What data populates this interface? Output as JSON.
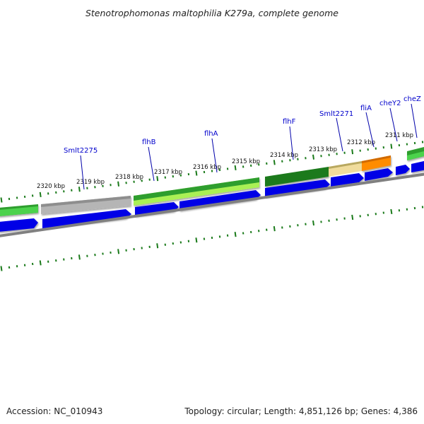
{
  "title": "Stenotrophomonas maltophilia K279a, complete genome",
  "footer": {
    "accession": "Accession: NC_010943",
    "summary": "Topology: circular; Length: 4,851,126 bp; Genes: 4,386"
  },
  "scale_ticks": [
    "2320 kbp",
    "2319 kbp",
    "2318 kbp",
    "2317 kbp",
    "2316 kbp",
    "2315 kbp",
    "2314 kbp",
    "2313 kbp",
    "2312 kbp",
    "2311 kbp"
  ],
  "gene_labels": [
    "Smlt2275",
    "flhB",
    "flhA",
    "flhF",
    "Smlt2271",
    "fliA",
    "cheY2",
    "cheZ"
  ],
  "colors": {
    "cds": "#0000e6",
    "feature_green": "#2e9e2e",
    "feature_light_green": "#aaf055",
    "feature_grey": "#b5b5b5",
    "feature_tan": "#f0dc9c",
    "feature_orange": "#ff8c00",
    "backbone": "#808080",
    "tick": "#1a7a1a",
    "label": "#0000cc"
  },
  "icons": [
    "strand-direction-arrow"
  ]
}
